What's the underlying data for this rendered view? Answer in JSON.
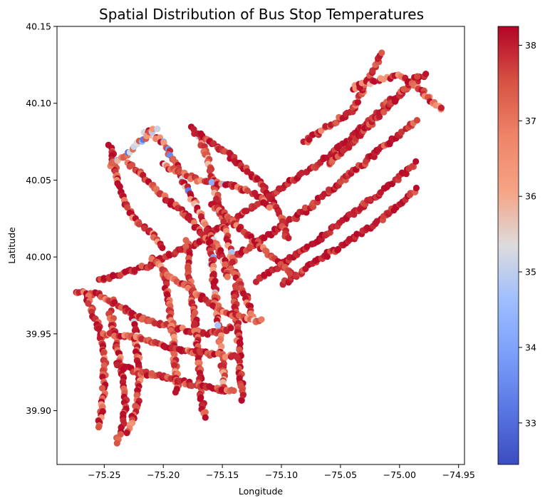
{
  "chart_data": {
    "type": "scatter",
    "title": "Spatial Distribution of Bus Stop Temperatures",
    "xlabel": "Longitude",
    "ylabel": "Latitude",
    "xlim": [
      -75.29,
      -74.945
    ],
    "ylim": [
      39.865,
      40.15
    ],
    "xticks": [
      -75.25,
      -75.2,
      -75.15,
      -75.1,
      -75.05,
      -75.0,
      -74.95
    ],
    "xtick_labels": [
      "−75.25",
      "−75.20",
      "−75.15",
      "−75.10",
      "−75.05",
      "−75.00",
      "−74.95"
    ],
    "yticks": [
      39.9,
      39.95,
      40.0,
      40.05,
      40.1,
      40.15
    ],
    "ytick_labels": [
      "39.90",
      "39.95",
      "40.00",
      "40.05",
      "40.10",
      "40.15"
    ],
    "grid": false,
    "colormap": "coolwarm",
    "colorbar": {
      "min": 32.45,
      "max": 38.25,
      "ticks": [
        33,
        34,
        35,
        36,
        37,
        38
      ],
      "tick_labels": [
        "33",
        "34",
        "35",
        "36",
        "37",
        "38"
      ]
    },
    "approximate_data_note": "",
    "routes": [
      {
        "path": [
          [
            -75.275,
            39.977
          ],
          [
            -75.255,
            39.976
          ],
          [
            -75.24,
            39.97
          ],
          [
            -75.225,
            39.962
          ],
          [
            -75.205,
            39.957
          ],
          [
            -75.185,
            39.953
          ],
          [
            -75.165,
            39.95
          ],
          [
            -75.15,
            39.952
          ],
          [
            -75.14,
            39.955
          ]
        ],
        "temp_range": [
          36.5,
          38.2
        ]
      },
      {
        "path": [
          [
            -75.255,
            39.985
          ],
          [
            -75.23,
            39.99
          ],
          [
            -75.21,
            39.995
          ],
          [
            -75.19,
            40.003
          ],
          [
            -75.17,
            40.01
          ],
          [
            -75.15,
            40.02
          ],
          [
            -75.13,
            40.03
          ],
          [
            -75.11,
            40.04
          ],
          [
            -75.09,
            40.05
          ],
          [
            -75.07,
            40.06
          ],
          [
            -75.05,
            40.072
          ],
          [
            -75.03,
            40.085
          ],
          [
            -75.01,
            40.1
          ],
          [
            -74.99,
            40.112
          ],
          [
            -74.975,
            40.12
          ]
        ],
        "temp_range": [
          37.0,
          38.2
        ]
      },
      {
        "path": [
          [
            -75.14,
            40.0
          ],
          [
            -75.12,
            40.01
          ],
          [
            -75.1,
            40.02
          ],
          [
            -75.08,
            40.03
          ],
          [
            -75.06,
            40.042
          ],
          [
            -75.04,
            40.055
          ],
          [
            -75.02,
            40.068
          ],
          [
            -75.0,
            40.08
          ],
          [
            -74.985,
            40.09
          ]
        ],
        "temp_range": [
          37.0,
          38.2
        ]
      },
      {
        "path": [
          [
            -75.12,
            39.985
          ],
          [
            -75.1,
            39.995
          ],
          [
            -75.08,
            40.005
          ],
          [
            -75.06,
            40.016
          ],
          [
            -75.04,
            40.028
          ],
          [
            -75.02,
            40.04
          ],
          [
            -75.0,
            40.052
          ],
          [
            -74.985,
            40.062
          ]
        ],
        "temp_range": [
          37.2,
          38.2
        ]
      },
      {
        "path": [
          [
            -75.1,
            39.982
          ],
          [
            -75.08,
            39.992
          ],
          [
            -75.06,
            40.002
          ],
          [
            -75.04,
            40.012
          ],
          [
            -75.02,
            40.022
          ],
          [
            -75.0,
            40.034
          ],
          [
            -74.985,
            40.045
          ]
        ],
        "temp_range": [
          37.2,
          38.2
        ]
      },
      {
        "path": [
          [
            -75.08,
            40.075
          ],
          [
            -75.06,
            40.085
          ],
          [
            -75.04,
            40.095
          ],
          [
            -75.03,
            40.11
          ],
          [
            -75.02,
            40.125
          ],
          [
            -75.015,
            40.135
          ]
        ],
        "temp_range": [
          36.5,
          38.2
        ]
      },
      {
        "path": [
          [
            -75.06,
            40.06
          ],
          [
            -75.04,
            40.075
          ],
          [
            -75.02,
            40.09
          ],
          [
            -75.0,
            40.105
          ],
          [
            -74.985,
            40.118
          ]
        ],
        "temp_range": [
          36.5,
          38.2
        ]
      },
      {
        "path": [
          [
            -75.04,
            40.11
          ],
          [
            -75.02,
            40.115
          ],
          [
            -75.0,
            40.118
          ],
          [
            -74.985,
            40.11
          ],
          [
            -74.97,
            40.1
          ],
          [
            -74.962,
            40.095
          ]
        ],
        "temp_range": [
          35.0,
          38.2
        ]
      },
      {
        "path": [
          [
            -75.23,
            40.062
          ],
          [
            -75.215,
            40.05
          ],
          [
            -75.2,
            40.04
          ],
          [
            -75.185,
            40.03
          ],
          [
            -75.17,
            40.018
          ],
          [
            -75.155,
            40.005
          ],
          [
            -75.14,
            39.99
          ],
          [
            -75.13,
            39.975
          ],
          [
            -75.125,
            39.96
          ]
        ],
        "temp_range": [
          36.0,
          38.2
        ]
      },
      {
        "path": [
          [
            -75.245,
            40.072
          ],
          [
            -75.24,
            40.055
          ],
          [
            -75.235,
            40.04
          ],
          [
            -75.225,
            40.025
          ],
          [
            -75.21,
            40.015
          ],
          [
            -75.2,
            40.005
          ]
        ],
        "temp_range": [
          36.0,
          38.2
        ]
      },
      {
        "path": [
          [
            -75.215,
            40.082
          ],
          [
            -75.2,
            40.075
          ],
          [
            -75.19,
            40.06
          ],
          [
            -75.18,
            40.045
          ],
          [
            -75.17,
            40.03
          ],
          [
            -75.16,
            40.015
          ],
          [
            -75.15,
            40.0
          ],
          [
            -75.145,
            39.985
          ]
        ],
        "temp_range": [
          33.0,
          38.2
        ]
      },
      {
        "path": [
          [
            -75.175,
            40.085
          ],
          [
            -75.165,
            40.07
          ],
          [
            -75.16,
            40.055
          ],
          [
            -75.155,
            40.04
          ],
          [
            -75.15,
            40.025
          ],
          [
            -75.145,
            40.01
          ],
          [
            -75.14,
            39.995
          ]
        ],
        "temp_range": [
          34.0,
          38.2
        ]
      },
      {
        "path": [
          [
            -75.17,
            40.08
          ],
          [
            -75.15,
            40.07
          ],
          [
            -75.135,
            40.06
          ],
          [
            -75.12,
            40.05
          ],
          [
            -75.11,
            40.04
          ],
          [
            -75.1,
            40.025
          ],
          [
            -75.095,
            40.01
          ]
        ],
        "temp_range": [
          36.5,
          38.2
        ]
      },
      {
        "path": [
          [
            -75.18,
            40.01
          ],
          [
            -75.178,
            39.99
          ],
          [
            -75.175,
            39.97
          ],
          [
            -75.172,
            39.95
          ],
          [
            -75.17,
            39.93
          ],
          [
            -75.168,
            39.91
          ],
          [
            -75.165,
            39.895
          ]
        ],
        "temp_range": [
          36.0,
          38.2
        ]
      },
      {
        "path": [
          [
            -75.16,
            40.01
          ],
          [
            -75.158,
            39.99
          ],
          [
            -75.155,
            39.97
          ],
          [
            -75.152,
            39.95
          ],
          [
            -75.15,
            39.93
          ],
          [
            -75.148,
            39.912
          ]
        ],
        "temp_range": [
          34.0,
          38.2
        ]
      },
      {
        "path": [
          [
            -75.2,
            39.99
          ],
          [
            -75.195,
            39.97
          ],
          [
            -75.192,
            39.95
          ],
          [
            -75.19,
            39.93
          ],
          [
            -75.188,
            39.91
          ]
        ],
        "temp_range": [
          36.0,
          38.2
        ]
      },
      {
        "path": [
          [
            -75.14,
            39.98
          ],
          [
            -75.138,
            39.96
          ],
          [
            -75.136,
            39.94
          ],
          [
            -75.134,
            39.92
          ],
          [
            -75.132,
            39.905
          ]
        ],
        "temp_range": [
          36.5,
          38.2
        ]
      },
      {
        "path": [
          [
            -75.245,
            39.965
          ],
          [
            -75.24,
            39.945
          ],
          [
            -75.235,
            39.925
          ],
          [
            -75.232,
            39.905
          ],
          [
            -75.235,
            39.89
          ],
          [
            -75.24,
            39.878
          ]
        ],
        "temp_range": [
          36.0,
          38.2
        ]
      },
      {
        "path": [
          [
            -75.225,
            39.96
          ],
          [
            -75.222,
            39.94
          ],
          [
            -75.22,
            39.92
          ],
          [
            -75.222,
            39.905
          ],
          [
            -75.228,
            39.89
          ],
          [
            -75.23,
            39.884
          ]
        ],
        "temp_range": [
          35.0,
          38.2
        ]
      },
      {
        "path": [
          [
            -75.265,
            39.975
          ],
          [
            -75.255,
            39.955
          ],
          [
            -75.25,
            39.935
          ],
          [
            -75.25,
            39.915
          ],
          [
            -75.252,
            39.9
          ],
          [
            -75.255,
            39.888
          ]
        ],
        "temp_range": [
          36.0,
          38.2
        ]
      },
      {
        "path": [
          [
            -75.24,
            39.93
          ],
          [
            -75.22,
            39.925
          ],
          [
            -75.2,
            39.922
          ],
          [
            -75.18,
            39.918
          ],
          [
            -75.16,
            39.915
          ],
          [
            -75.14,
            39.912
          ]
        ],
        "temp_range": [
          36.0,
          38.2
        ]
      },
      {
        "path": [
          [
            -75.25,
            39.95
          ],
          [
            -75.23,
            39.948
          ],
          [
            -75.21,
            39.945
          ],
          [
            -75.19,
            39.94
          ],
          [
            -75.17,
            39.938
          ],
          [
            -75.15,
            39.936
          ],
          [
            -75.135,
            39.935
          ]
        ],
        "temp_range": [
          36.0,
          38.2
        ]
      },
      {
        "path": [
          [
            -75.21,
            40.0
          ],
          [
            -75.19,
            39.985
          ],
          [
            -75.17,
            39.975
          ],
          [
            -75.15,
            39.965
          ],
          [
            -75.13,
            39.96
          ],
          [
            -75.115,
            39.958
          ]
        ],
        "temp_range": [
          35.0,
          38.2
        ]
      },
      {
        "path": [
          [
            -75.2,
            40.06
          ],
          [
            -75.185,
            40.055
          ],
          [
            -75.17,
            40.05
          ],
          [
            -75.15,
            40.048
          ],
          [
            -75.135,
            40.045
          ],
          [
            -75.12,
            40.04
          ],
          [
            -75.11,
            40.03
          ]
        ],
        "temp_range": [
          34.0,
          38.2
        ]
      },
      {
        "path": [
          [
            -75.16,
            40.035
          ],
          [
            -75.145,
            40.025
          ],
          [
            -75.13,
            40.015
          ],
          [
            -75.115,
            40.005
          ],
          [
            -75.1,
            39.995
          ],
          [
            -75.09,
            39.988
          ]
        ],
        "temp_range": [
          36.5,
          38.2
        ]
      },
      {
        "path": [
          [
            -75.245,
            40.06
          ],
          [
            -75.23,
            40.068
          ],
          [
            -75.215,
            40.078
          ],
          [
            -75.205,
            40.085
          ]
        ],
        "temp_range": [
          33.0,
          37.5
        ]
      }
    ]
  }
}
